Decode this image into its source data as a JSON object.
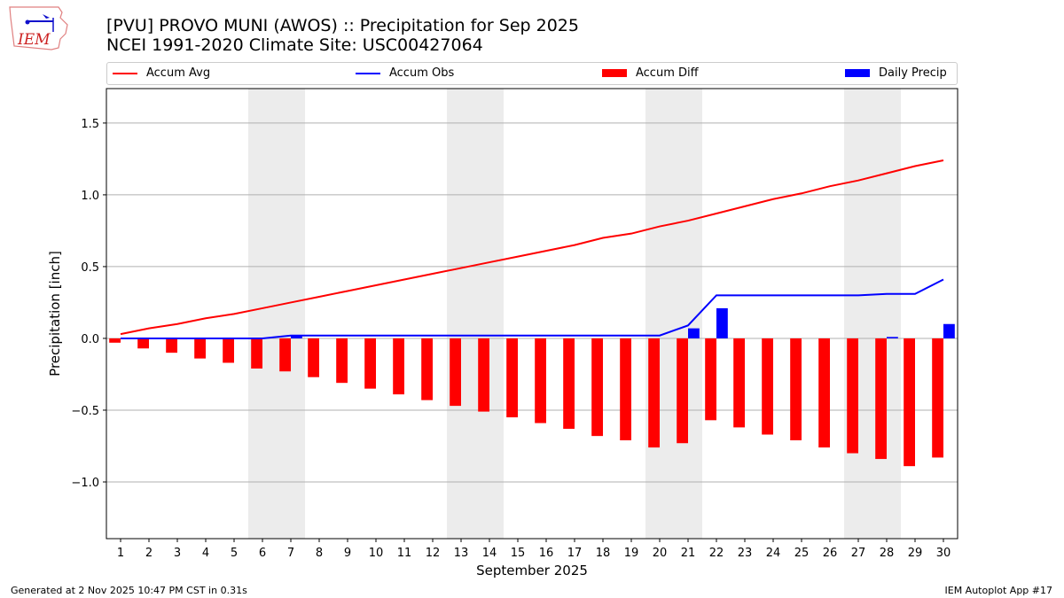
{
  "header": {
    "title_line1": "[PVU] PROVO MUNI (AWOS) :: Precipitation for Sep 2025",
    "title_line2": "NCEI 1991-2020 Climate Site: USC00427064",
    "logo_text": "IEM"
  },
  "footer": {
    "left": "Generated at 2 Nov 2025 10:47 PM CST in 0.31s",
    "right": "IEM Autoplot App #17"
  },
  "chart_data": {
    "type": "bar",
    "title": "[PVU] PROVO MUNI (AWOS) :: Precipitation for Sep 2025",
    "xlabel": "September 2025",
    "ylabel": "Precipitation [inch]",
    "xlim": [
      0.5,
      30.5
    ],
    "ylim": [
      -1.395,
      1.74
    ],
    "yticks": [
      -1.0,
      -0.5,
      0.0,
      0.5,
      1.0,
      1.5
    ],
    "ytick_labels": [
      "−1.0",
      "−0.5",
      "0.0",
      "0.5",
      "1.0",
      "1.5"
    ],
    "grid": "y",
    "legend_placement": "top",
    "weekend_shading_days": [
      [
        6,
        7
      ],
      [
        13,
        14
      ],
      [
        20,
        21
      ],
      [
        27,
        28
      ]
    ],
    "x": [
      1,
      2,
      3,
      4,
      5,
      6,
      7,
      8,
      9,
      10,
      11,
      12,
      13,
      14,
      15,
      16,
      17,
      18,
      19,
      20,
      21,
      22,
      23,
      24,
      25,
      26,
      27,
      28,
      29,
      30
    ],
    "series": [
      {
        "name": "Accum Avg",
        "kind": "line",
        "color": "#ff0000",
        "values": [
          0.03,
          0.07,
          0.1,
          0.14,
          0.17,
          0.21,
          0.25,
          0.29,
          0.33,
          0.37,
          0.41,
          0.45,
          0.49,
          0.53,
          0.57,
          0.61,
          0.65,
          0.7,
          0.73,
          0.78,
          0.82,
          0.87,
          0.92,
          0.97,
          1.01,
          1.06,
          1.1,
          1.15,
          1.2,
          1.24
        ]
      },
      {
        "name": "Accum Obs",
        "kind": "line",
        "color": "#0000ff",
        "values": [
          0,
          0,
          0,
          0,
          0,
          0,
          0.02,
          0.02,
          0.02,
          0.02,
          0.02,
          0.02,
          0.02,
          0.02,
          0.02,
          0.02,
          0.02,
          0.02,
          0.02,
          0.02,
          0.09,
          0.3,
          0.3,
          0.3,
          0.3,
          0.3,
          0.3,
          0.31,
          0.31,
          0.41
        ]
      },
      {
        "name": "Accum Diff",
        "kind": "bar",
        "color": "#ff0000",
        "values": [
          -0.03,
          -0.07,
          -0.1,
          -0.14,
          -0.17,
          -0.21,
          -0.23,
          -0.27,
          -0.31,
          -0.35,
          -0.39,
          -0.43,
          -0.47,
          -0.51,
          -0.55,
          -0.59,
          -0.63,
          -0.68,
          -0.71,
          -0.76,
          -0.73,
          -0.57,
          -0.62,
          -0.67,
          -0.71,
          -0.76,
          -0.8,
          -0.84,
          -0.89,
          -0.83
        ]
      },
      {
        "name": "Daily Precip",
        "kind": "bar",
        "color": "#0000ff",
        "values": [
          0,
          0,
          0,
          0,
          0,
          0,
          0.02,
          0,
          0,
          0,
          0,
          0,
          0,
          0,
          0,
          0,
          0,
          0,
          0,
          0,
          0.07,
          0.21,
          0,
          0,
          0,
          0,
          0,
          0.01,
          0,
          0.1
        ]
      }
    ]
  }
}
